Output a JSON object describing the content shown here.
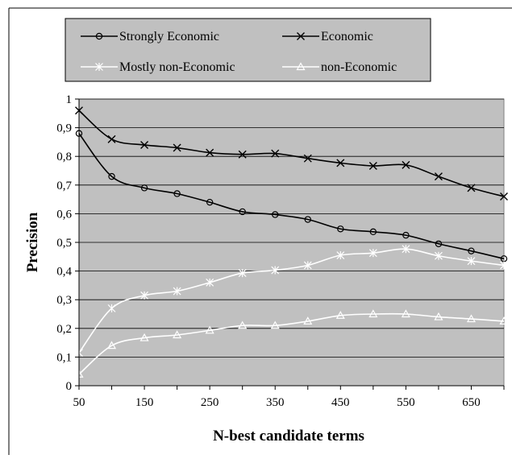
{
  "chart_data": {
    "type": "line",
    "title": "",
    "xlabel": "N-best candidate terms",
    "ylabel": "Precision",
    "x": [
      50,
      100,
      150,
      200,
      250,
      300,
      350,
      400,
      450,
      500,
      550,
      600,
      650,
      700
    ],
    "xlim": [
      50,
      700
    ],
    "ylim": [
      0,
      1
    ],
    "x_ticks": [
      50,
      150,
      250,
      350,
      450,
      550,
      650
    ],
    "x_tick_labels": [
      "50",
      "150",
      "250",
      "350",
      "450",
      "550",
      "650"
    ],
    "y_ticks": [
      0,
      0.1,
      0.2,
      0.3,
      0.4,
      0.5,
      0.6,
      0.7,
      0.8,
      0.9,
      1
    ],
    "y_tick_labels": [
      "0",
      "0,1",
      "0,2",
      "0,3",
      "0,4",
      "0,5",
      "0,6",
      "0,7",
      "0,8",
      "0,9",
      "1"
    ],
    "grid": "horizontal",
    "legend_position": "top",
    "plot_background": "#c0c0c0",
    "series": [
      {
        "name": "Strongly Economic",
        "marker": "circle",
        "color": "#000000",
        "values": [
          0.88,
          0.73,
          0.69,
          0.67,
          0.64,
          0.607,
          0.597,
          0.58,
          0.547,
          0.537,
          0.525,
          0.495,
          0.47,
          0.443
        ]
      },
      {
        "name": "Economic",
        "marker": "x",
        "color": "#000000",
        "values": [
          0.96,
          0.86,
          0.84,
          0.83,
          0.813,
          0.807,
          0.81,
          0.793,
          0.777,
          0.767,
          0.77,
          0.73,
          0.69,
          0.66
        ]
      },
      {
        "name": "Mostly non-Economic",
        "marker": "asterisk",
        "color": "#ffffff",
        "values": [
          0.115,
          0.27,
          0.315,
          0.33,
          0.36,
          0.393,
          0.403,
          0.42,
          0.455,
          0.463,
          0.477,
          0.453,
          0.435,
          0.42
        ]
      },
      {
        "name": "non-Economic",
        "marker": "triangle",
        "color": "#ffffff",
        "values": [
          0.04,
          0.14,
          0.167,
          0.177,
          0.193,
          0.21,
          0.21,
          0.225,
          0.245,
          0.25,
          0.25,
          0.24,
          0.233,
          0.225
        ]
      }
    ]
  }
}
